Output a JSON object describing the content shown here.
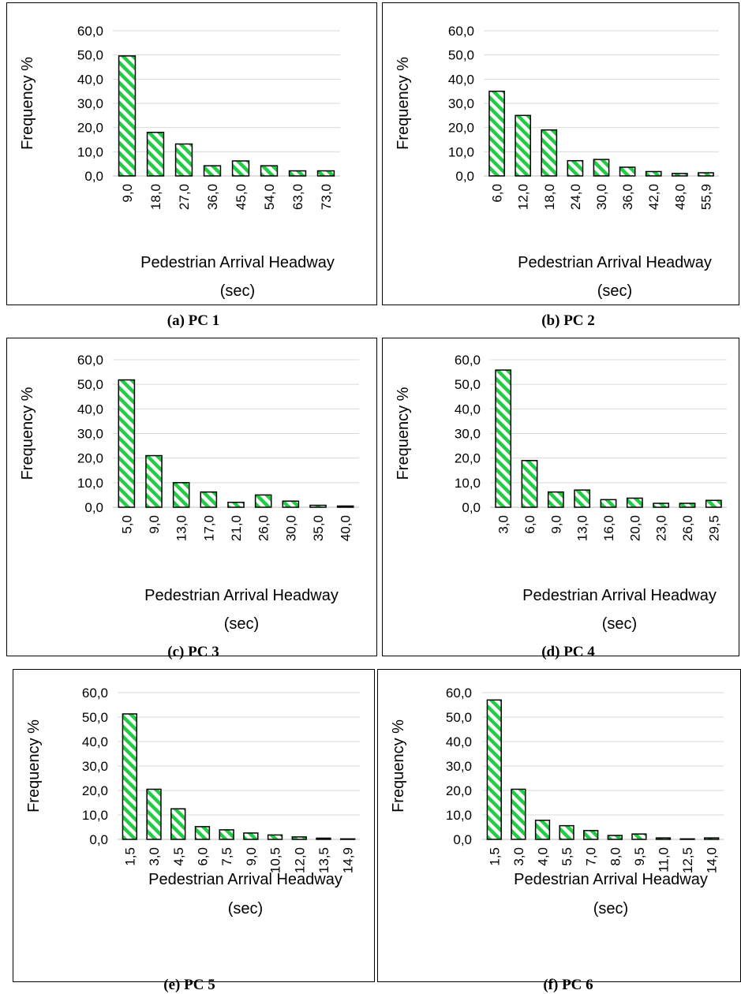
{
  "chart_data": [
    {
      "type": "bar",
      "caption": "(a) PC 1",
      "ylabel": "Frequency %",
      "xlabel_lines": [
        "Pedestrian Arrival Headway",
        "(sec)"
      ],
      "ylim": [
        0,
        60
      ],
      "yticks": [
        "0,0",
        "10,0",
        "20,0",
        "30,0",
        "40,0",
        "50,0",
        "60,0"
      ],
      "categories": [
        "9,0",
        "18,0",
        "27,0",
        "36,0",
        "45,0",
        "54,0",
        "63,0",
        "73,0"
      ],
      "values": [
        49.6,
        18.0,
        13.2,
        4.2,
        6.2,
        4.2,
        2.1,
        2.1
      ],
      "bar_color": "#22cc44",
      "grid": true
    },
    {
      "type": "bar",
      "caption": "(b) PC 2",
      "ylabel": "Frequency %",
      "xlabel_lines": [
        "Pedestrian Arrival Headway",
        "(sec)"
      ],
      "ylim": [
        0,
        60
      ],
      "yticks": [
        "0,0",
        "10,0",
        "20,0",
        "30,0",
        "40,0",
        "50,0",
        "60,0"
      ],
      "categories": [
        "6,0",
        "12,0",
        "18,0",
        "24,0",
        "30,0",
        "36,0",
        "42,0",
        "48,0",
        "55,9"
      ],
      "values": [
        35.0,
        25.0,
        19.0,
        6.3,
        6.8,
        3.6,
        1.8,
        1.0,
        1.3
      ],
      "bar_color": "#22cc44",
      "grid": true
    },
    {
      "type": "bar",
      "caption": "(c) PC 3",
      "ylabel": "Frequency  %",
      "xlabel_lines": [
        "Pedestrian Arrival Headway",
        "(sec)"
      ],
      "ylim": [
        0,
        60
      ],
      "yticks": [
        "0,0",
        "10,0",
        "20,0",
        "30,0",
        "40,0",
        "50,0",
        "60,0"
      ],
      "categories": [
        "5,0",
        "9,0",
        "13,0",
        "17,0",
        "21,0",
        "26,0",
        "30,0",
        "35,0",
        "40,0"
      ],
      "values": [
        51.8,
        21.0,
        10.0,
        6.2,
        2.0,
        5.0,
        2.5,
        0.8,
        0.5
      ],
      "bar_color": "#22cc44",
      "grid": true
    },
    {
      "type": "bar",
      "caption": "(d) PC 4",
      "ylabel": "Frequency %",
      "xlabel_lines": [
        "Pedestrian Arrival Headway",
        "(sec)"
      ],
      "ylim": [
        0,
        60
      ],
      "yticks": [
        "0,0",
        "10,0",
        "20,0",
        "30,0",
        "40,0",
        "50,0",
        "60,0"
      ],
      "categories": [
        "3,0",
        "6,0",
        "9,0",
        "13,0",
        "16,0",
        "20,0",
        "23,0",
        "26,0",
        "29,5"
      ],
      "values": [
        55.8,
        19.0,
        6.2,
        7.0,
        3.1,
        3.7,
        1.6,
        1.6,
        2.8
      ],
      "bar_color": "#22cc44",
      "grid": true
    },
    {
      "type": "bar",
      "caption": "(e) PC 5",
      "ylabel": "Frequency %",
      "xlabel_lines": [
        "Pedestrian Arrival Headway",
        "(sec)"
      ],
      "ylim": [
        0,
        60
      ],
      "yticks": [
        "0,0",
        "10,0",
        "20,0",
        "30,0",
        "40,0",
        "50,0",
        "60,0"
      ],
      "categories": [
        "1,5",
        "3,0",
        "4,5",
        "6,0",
        "7,5",
        "9,0",
        "10,5",
        "12,0",
        "13,5",
        "14,9"
      ],
      "values": [
        51.3,
        20.5,
        12.5,
        5.2,
        3.9,
        2.6,
        1.8,
        1.0,
        0.5,
        0.2
      ],
      "bar_color": "#22cc44",
      "grid": true
    },
    {
      "type": "bar",
      "caption": "(f) PC 6",
      "ylabel": "Frequency %",
      "xlabel_lines": [
        "Pedestrian Arrival Headway",
        "(sec)"
      ],
      "ylim": [
        0,
        60
      ],
      "yticks": [
        "0,0",
        "10,0",
        "20,0",
        "30,0",
        "40,0",
        "50,0",
        "60,0"
      ],
      "categories": [
        "1,5",
        "3,0",
        "4,0",
        "5,5",
        "7,0",
        "8,0",
        "9,5",
        "11,0",
        "12,5",
        "14,0"
      ],
      "values": [
        57.0,
        20.5,
        7.8,
        5.6,
        3.6,
        1.6,
        2.2,
        0.6,
        0.2,
        0.6
      ],
      "bar_color": "#22cc44",
      "grid": true
    }
  ]
}
